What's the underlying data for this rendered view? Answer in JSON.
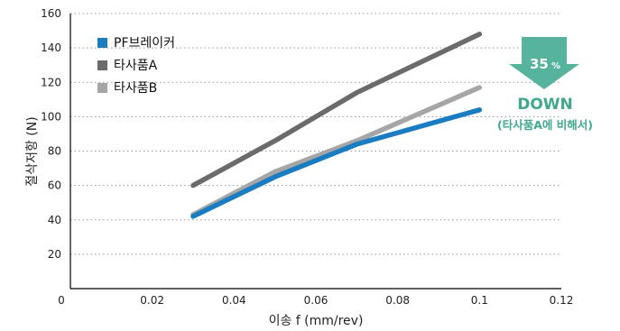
{
  "chart_data": {
    "type": "line",
    "xlabel": "이송 f (mm/rev)",
    "ylabel": "절삭저항 (N)",
    "xlim": [
      0,
      0.12
    ],
    "ylim": [
      0,
      160
    ],
    "xticks": [
      0,
      0.02,
      0.04,
      0.06,
      0.08,
      0.1,
      0.12
    ],
    "xtick_labels": [
      "0",
      "0.02",
      "0.04",
      "0.06",
      "0.08",
      "0.1",
      "0.12"
    ],
    "yticks": [
      20,
      40,
      60,
      80,
      100,
      120,
      140,
      160
    ],
    "ytick_labels": [
      "20",
      "40",
      "60",
      "80",
      "100",
      "120",
      "140",
      "160"
    ],
    "grid": "horizontal dotted",
    "legend_position": "top-left",
    "series": [
      {
        "name": "PF브레이커",
        "color": "#1a7cc1",
        "x": [
          0.03,
          0.05,
          0.07,
          0.1
        ],
        "y": [
          42,
          65,
          84,
          104
        ]
      },
      {
        "name": "타사품A",
        "color": "#6b6b6b",
        "x": [
          0.03,
          0.05,
          0.07,
          0.1
        ],
        "y": [
          60,
          86,
          114,
          148
        ]
      },
      {
        "name": "타사품B",
        "color": "#a6a6a6",
        "x": [
          0.03,
          0.05,
          0.07,
          0.1
        ],
        "y": [
          43,
          68,
          86,
          117
        ]
      }
    ]
  },
  "callout": {
    "value": "35",
    "unit": "%",
    "headline": "DOWN",
    "caption": "(타사품A에 비해서)",
    "arrow_color": "#55b39e",
    "text_color": "#3fa88f"
  }
}
